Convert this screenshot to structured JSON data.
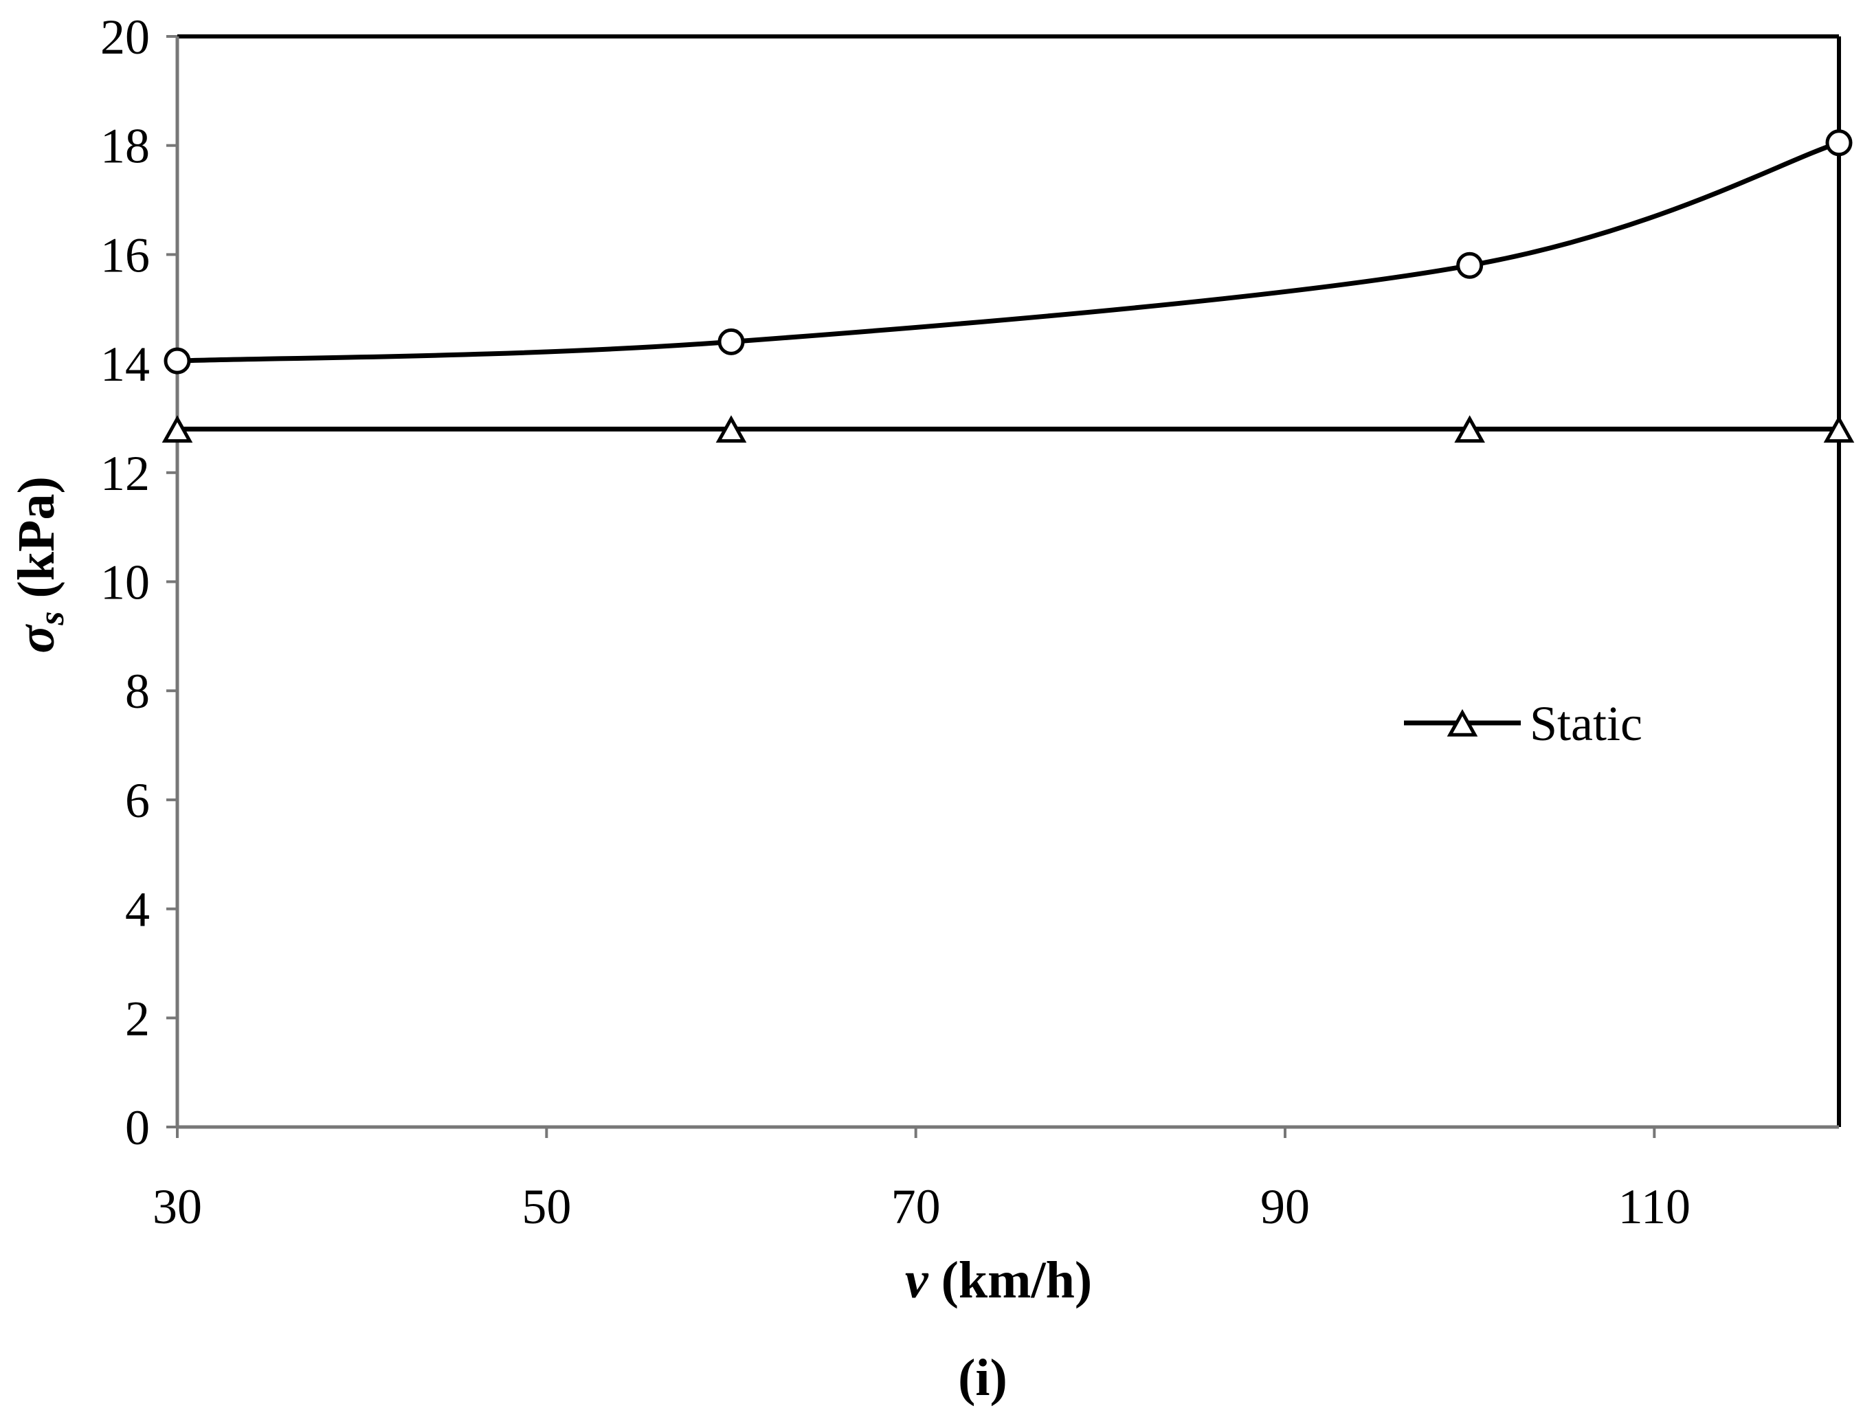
{
  "chart_data": {
    "type": "line",
    "title": "",
    "xlabel_var": "v",
    "xlabel_unit": " (km/h)",
    "ylabel_var": "σ",
    "ylabel_sub": "s",
    "ylabel_unit": " (kPa)",
    "xlim": [
      30,
      120
    ],
    "ylim": [
      0,
      20
    ],
    "xticks": [
      30,
      50,
      70,
      90,
      110
    ],
    "yticks": [
      0,
      2,
      4,
      6,
      8,
      10,
      12,
      14,
      16,
      18,
      20
    ],
    "grid": false,
    "caption": "(i)",
    "legend": {
      "position": "center-right",
      "entries": [
        "Static"
      ]
    },
    "series": [
      {
        "name": "",
        "marker": "circle",
        "smooth": true,
        "x": [
          30,
          60,
          100,
          120
        ],
        "y": [
          14.05,
          14.4,
          15.8,
          18.05
        ]
      },
      {
        "name": "Static",
        "marker": "triangle",
        "smooth": false,
        "x": [
          30,
          60,
          100,
          120
        ],
        "y": [
          12.8,
          12.8,
          12.8,
          12.8
        ]
      }
    ]
  }
}
